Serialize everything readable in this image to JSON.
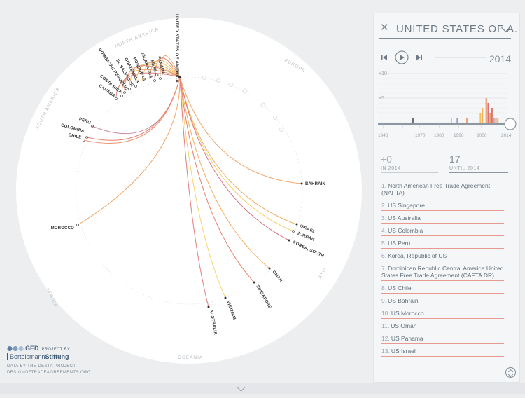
{
  "focus_country": "UNITED STATES OF AMERICA",
  "countries": [
    {
      "name": "PANAMA",
      "rot": 75
    },
    {
      "name": "MEXICO",
      "rot": 72
    },
    {
      "name": "NICARAGUA",
      "rot": 70
    },
    {
      "name": "HONDURAS",
      "rot": 66
    },
    {
      "name": "GUATEMALA",
      "rot": 63
    },
    {
      "name": "EL SALVADOR",
      "rot": 60
    },
    {
      "name": "DOMINICAN REPUBLIC",
      "rot": 56
    },
    {
      "name": "COSTA RICA",
      "rot": 40
    },
    {
      "name": "CANADA",
      "rot": 36
    },
    {
      "name": "PERU",
      "rot": 20
    },
    {
      "name": "COLOMBIA",
      "rot": 15
    },
    {
      "name": "CHILE",
      "rot": 12
    },
    {
      "name": "MOROCCO",
      "rot": 0
    },
    {
      "name": "BAHRAIN",
      "rot": 0
    },
    {
      "name": "ISRAEL",
      "rot": 22
    },
    {
      "name": "JORDAN",
      "rot": 22
    },
    {
      "name": "KOREA, SOUTH",
      "rot": 25
    },
    {
      "name": "OMAN",
      "rot": 50
    },
    {
      "name": "SINGAPORE",
      "rot": 60
    },
    {
      "name": "VIETNAM",
      "rot": 70
    },
    {
      "name": "AUSTRALIA",
      "rot": 80
    }
  ],
  "regions": [
    "NORTH AMERICA",
    "EUROPE",
    "SOUTH AMERICA",
    "AFRICA",
    "ASIA",
    "OCEANIA"
  ],
  "panel": {
    "title": "UNITED STATES OF A...",
    "year": "2014",
    "new_count": "+0",
    "new_label": "IN 2014",
    "total_count": "17",
    "total_label": "UNTIL 2014"
  },
  "timeline": {
    "y_ticks": [
      "+10",
      "+5"
    ],
    "x_labels": [
      "1948",
      "1970",
      "1980",
      "1990",
      "2000",
      "2014"
    ]
  },
  "chart_data": {
    "type": "bar",
    "title": "",
    "xlabel": "",
    "ylabel": "",
    "ylim": [
      0,
      10
    ],
    "x": [
      1965,
      1985,
      1988,
      1993,
      2000,
      2001,
      2003,
      2004,
      2005,
      2006,
      2007,
      2008,
      2009
    ],
    "values": [
      1,
      1,
      1,
      1,
      2,
      3,
      5,
      4,
      2,
      3,
      1,
      1,
      1
    ],
    "colors": [
      "#5e6b78",
      "#f1c95f",
      "#8fa6bf",
      "#ef9f6a",
      "#f2c061",
      "#f3b05a",
      "#e3875a",
      "#df7072",
      "#e6a06a",
      "#d97575",
      "#c9a0a0",
      "#e98b62",
      "#e7b07a"
    ]
  },
  "agreements": [
    "North American Free Trade Agreement (NAFTA)",
    "US Singapore",
    "US Australia",
    "US Colombia",
    "US Peru",
    "Korea, Republic of US",
    "Dominican Republic Central America United States Free Trade Agreement (CAFTA DR)",
    "US Chile",
    "US Bahrain",
    "US Morocco",
    "US Oman",
    "US Panama",
    "US Israel"
  ],
  "branding": {
    "logo": "GED",
    "project_by": "PROJECT BY",
    "stiftung_a": "Bertelsmann",
    "stiftung_b": "Stiftung",
    "data_by": "DATA BY THE DESTA PROJECT",
    "site": "DESIGNOFTRADEAGREEMENTS.ORG"
  },
  "colors": {
    "accent": "#e8836a",
    "panel_bg": "#f5f6f7",
    "page_bg": "#eceef0"
  }
}
